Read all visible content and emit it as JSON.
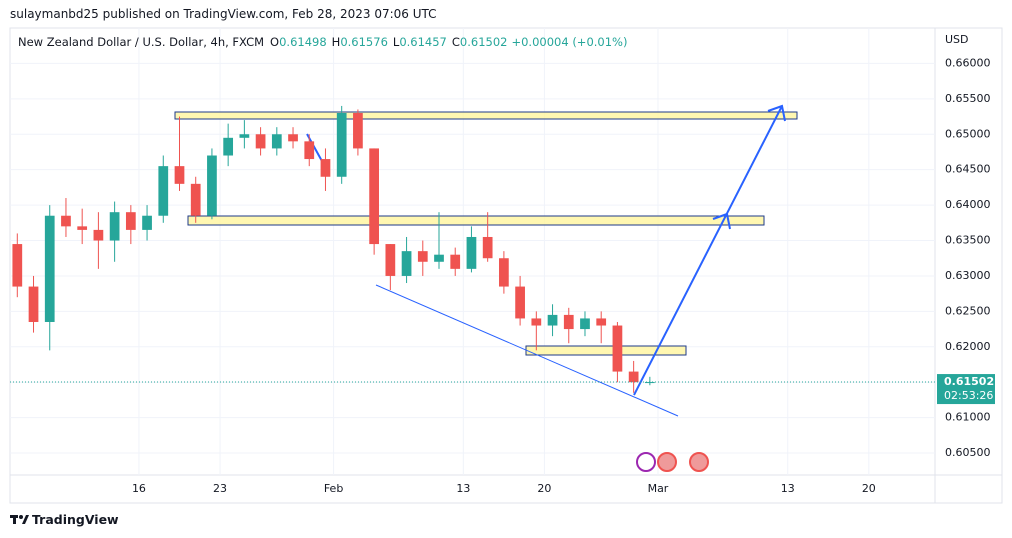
{
  "header": {
    "published": "sulaymanbd25 published on TradingView.com, Feb 28, 2023 07:06 UTC"
  },
  "chart_data": {
    "type": "candlestick",
    "title": "New Zealand Dollar / U.S. Dollar, 4h, FXCM",
    "ohlc_legend": [
      {
        "key": "O",
        "value": "0.61498"
      },
      {
        "key": "H",
        "value": "0.61576"
      },
      {
        "key": "L",
        "value": "0.61457"
      },
      {
        "key": "C",
        "value": "0.61502"
      }
    ],
    "change": "+0.00004 (+0.01%)",
    "y_axis_label": "USD",
    "x": [
      -7.5,
      -6.5,
      -5.5,
      -4.5,
      -3.5,
      -2.5,
      -1.5,
      -0.5,
      0.5,
      1.5,
      2.5,
      3.5,
      4.5,
      5.5,
      6.5,
      7.5,
      8.5,
      9.5,
      10.5,
      11.5,
      12.5,
      13.5,
      14.5,
      15.5,
      16.5,
      17.5,
      18.5,
      19.5,
      20.5,
      21.5,
      22.5,
      23.5,
      24.5,
      25.5,
      26.5,
      27.5,
      28.5,
      29.5,
      30.5,
      31.5
    ],
    "open": [
      0.6345,
      0.6285,
      0.6235,
      0.6385,
      0.637,
      0.6365,
      0.635,
      0.639,
      0.6365,
      0.6385,
      0.6455,
      0.643,
      0.6385,
      0.647,
      0.6495,
      0.65,
      0.648,
      0.65,
      0.649,
      0.6465,
      0.644,
      0.653,
      0.648,
      0.6345,
      0.63,
      0.6335,
      0.632,
      0.633,
      0.631,
      0.6355,
      0.6325,
      0.6285,
      0.624,
      0.623,
      0.6245,
      0.6225,
      0.624,
      0.623,
      0.6165,
      0.61498
    ],
    "high": [
      0.636,
      0.63,
      0.64,
      0.641,
      0.6395,
      0.639,
      0.6405,
      0.64,
      0.64,
      0.647,
      0.6525,
      0.644,
      0.648,
      0.6515,
      0.652,
      0.651,
      0.651,
      0.651,
      0.65,
      0.648,
      0.654,
      0.6535,
      0.648,
      0.6345,
      0.6355,
      0.635,
      0.639,
      0.634,
      0.637,
      0.639,
      0.6335,
      0.63,
      0.625,
      0.626,
      0.6255,
      0.625,
      0.625,
      0.6235,
      0.618,
      0.61576
    ],
    "low": [
      0.627,
      0.622,
      0.6195,
      0.6355,
      0.6345,
      0.631,
      0.632,
      0.6345,
      0.635,
      0.6375,
      0.642,
      0.6375,
      0.638,
      0.6455,
      0.648,
      0.647,
      0.647,
      0.648,
      0.6455,
      0.642,
      0.643,
      0.647,
      0.633,
      0.628,
      0.629,
      0.63,
      0.631,
      0.63,
      0.6305,
      0.632,
      0.6275,
      0.623,
      0.6195,
      0.6215,
      0.6205,
      0.6215,
      0.6205,
      0.615,
      0.6135,
      0.61457
    ],
    "close": [
      0.6285,
      0.6235,
      0.6385,
      0.637,
      0.6365,
      0.635,
      0.639,
      0.6365,
      0.6385,
      0.6455,
      0.643,
      0.6385,
      0.647,
      0.6495,
      0.65,
      0.648,
      0.65,
      0.649,
      0.6465,
      0.644,
      0.653,
      0.648,
      0.6345,
      0.63,
      0.6335,
      0.632,
      0.633,
      0.631,
      0.6355,
      0.6325,
      0.6285,
      0.624,
      0.623,
      0.6245,
      0.6225,
      0.624,
      0.623,
      0.6165,
      0.615,
      0.61502
    ],
    "up_color": "#26a69a",
    "down_color": "#ef5350",
    "xlim": [
      -7.95,
      49.08
    ],
    "xticks": [
      {
        "value": 0,
        "label": "16"
      },
      {
        "value": 5,
        "label": "23"
      },
      {
        "value": 12,
        "label": "Feb"
      },
      {
        "value": 20,
        "label": "13"
      },
      {
        "value": 25,
        "label": "20"
      },
      {
        "value": 32,
        "label": "Mar"
      },
      {
        "value": 40,
        "label": "13"
      },
      {
        "value": 45,
        "label": "20"
      }
    ],
    "ylim": [
      0.6019,
      0.665
    ],
    "yticks": [
      {
        "value": 0.605,
        "label": "0.60500"
      },
      {
        "value": 0.61,
        "label": "0.61000"
      },
      {
        "value": 0.615,
        "label": "0.61500"
      },
      {
        "value": 0.62,
        "label": "0.62000"
      },
      {
        "value": 0.625,
        "label": "0.62500"
      },
      {
        "value": 0.63,
        "label": "0.63000"
      },
      {
        "value": 0.635,
        "label": "0.63500"
      },
      {
        "value": 0.64,
        "label": "0.64000"
      },
      {
        "value": 0.645,
        "label": "0.64500"
      },
      {
        "value": 0.65,
        "label": "0.65000"
      },
      {
        "value": 0.655,
        "label": "0.65500"
      },
      {
        "value": 0.66,
        "label": "0.66000"
      }
    ],
    "grid": true,
    "last_price": 0.61502,
    "countdown": "02:53:26"
  },
  "footer": {
    "brand": "TradingView"
  }
}
